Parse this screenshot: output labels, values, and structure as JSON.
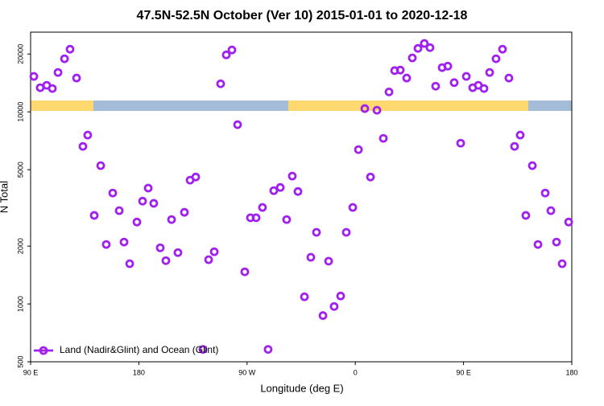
{
  "chart_data": {
    "type": "scatter",
    "title": "47.5N-52.5N October (Ver 10)   2015-01-01 to 2020-12-18",
    "x_label": "Longitude (deg E)",
    "y_label": "N Total",
    "log_y": true,
    "grid": false,
    "legend_position": "lower left",
    "xlim": [
      90,
      540
    ],
    "xticks": [
      {
        "value": 90,
        "label": "90 E"
      },
      {
        "value": 180,
        "label": "180"
      },
      {
        "value": 270,
        "label": "90 W"
      },
      {
        "value": 360,
        "label": "0"
      },
      {
        "value": 450,
        "label": "90 E"
      },
      {
        "value": 540,
        "label": "180"
      }
    ],
    "ylim": [
      500,
      26000
    ],
    "yticks": [
      500,
      1000,
      2000,
      5000,
      10000,
      20000
    ],
    "series": [
      {
        "name": "Land (Nadir&Glint) and Ocean (Glint)",
        "color": "#a020f0",
        "x": [
          92.7,
          98.0,
          103.4,
          108.1,
          112.8,
          118.2,
          122.8,
          128.2,
          133.5,
          137.5,
          142.9,
          148.3,
          152.9,
          158.3,
          163.7,
          167.7,
          172.4,
          178.4,
          183.1,
          187.8,
          192.4,
          197.8,
          202.5,
          207.2,
          212.5,
          217.9,
          222.6,
          227.3,
          233.3,
          238.0,
          242.7,
          248.0,
          252.7,
          257.4,
          262.1,
          268.1,
          272.8,
          277.5,
          282.8,
          287.5,
          292.2,
          297.6,
          302.9,
          307.6,
          312.3,
          317.7,
          323.0,
          327.7,
          333.1,
          337.8,
          342.4,
          347.8,
          352.5,
          357.9,
          362.6,
          367.9,
          372.6,
          378.0,
          383.3,
          388.0,
          392.7,
          397.4,
          402.7,
          407.4,
          412.1,
          417.4,
          422.1,
          426.8,
          432.2,
          436.9,
          442.2,
          447.6,
          452.3,
          457.6,
          462.3,
          467.0,
          471.7,
          477.0,
          482.4,
          487.7,
          492.4,
          497.1,
          501.8,
          507.2,
          511.9,
          517.9,
          522.6,
          527.3,
          532.0,
          537.4
        ],
        "values": [
          15300,
          13360,
          13750,
          13230,
          16040,
          18900,
          21200,
          15000,
          6610,
          7570,
          2890,
          5250,
          2040,
          3780,
          3060,
          2100,
          1620,
          2670,
          3430,
          4010,
          3340,
          1960,
          1680,
          2750,
          1850,
          3000,
          4410,
          4580,
          580,
          1700,
          1870,
          14000,
          19800,
          21000,
          8580,
          1470,
          2810,
          2810,
          3180,
          580,
          3890,
          4040,
          2750,
          4630,
          3850,
          1090,
          1750,
          2360,
          870,
          1670,
          970,
          1100,
          2360,
          3180,
          6360,
          10400,
          4580,
          10200,
          7280,
          12700,
          16400,
          16500,
          15000,
          19100,
          21400,
          22700,
          21600,
          13600,
          17000,
          17300,
          14200,
          6870,
          15300,
          13360,
          13750,
          13230,
          16040,
          18900,
          21200,
          15000,
          6610,
          7570,
          2890,
          5250,
          2040,
          3780,
          3060,
          2100,
          1620,
          2670
        ]
      }
    ]
  }
}
